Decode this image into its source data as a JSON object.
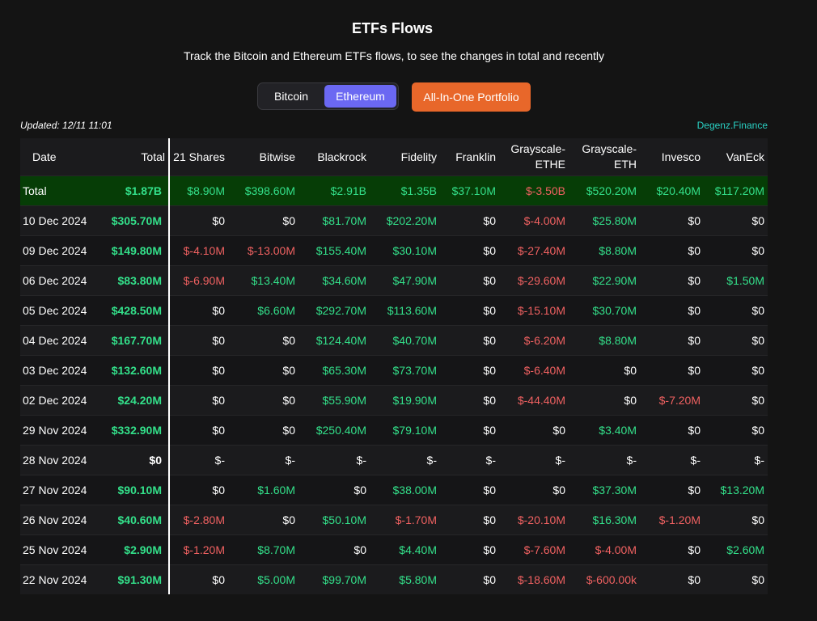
{
  "header": {
    "title": "ETFs Flows",
    "subtitle": "Track the Bitcoin and Ethereum ETFs flows, to see the changes in total and recently"
  },
  "toggle": {
    "options": [
      "Bitcoin",
      "Ethereum"
    ],
    "selected": "Ethereum",
    "portfolio_label": "All-In-One Portfolio"
  },
  "meta": {
    "updated": "Updated: 12/11 11:01",
    "brand": "Degenz.Finance"
  },
  "colors": {
    "accent": "#6b68f2",
    "portfolio_button": "#e8672a",
    "positive": "#33e08a",
    "negative": "#f06161",
    "total_row": "#063d06",
    "brand": "#2ad1c4"
  },
  "table": {
    "columns": [
      "Date",
      "Total",
      "21 Shares",
      "Bitwise",
      "Blackrock",
      "Fidelity",
      "Franklin",
      "Grayscale-ETHE",
      "Grayscale-ETH",
      "Invesco",
      "VanEck"
    ],
    "total_row": [
      "Total",
      "$1.87B",
      "$8.90M",
      "$398.60M",
      "$2.91B",
      "$1.35B",
      "$37.10M",
      "$-3.50B",
      "$520.20M",
      "$20.40M",
      "$117.20M"
    ],
    "rows": [
      [
        "10 Dec 2024",
        "$305.70M",
        "$0",
        "$0",
        "$81.70M",
        "$202.20M",
        "$0",
        "$-4.00M",
        "$25.80M",
        "$0",
        "$0"
      ],
      [
        "09 Dec 2024",
        "$149.80M",
        "$-4.10M",
        "$-13.00M",
        "$155.40M",
        "$30.10M",
        "$0",
        "$-27.40M",
        "$8.80M",
        "$0",
        "$0"
      ],
      [
        "06 Dec 2024",
        "$83.80M",
        "$-6.90M",
        "$13.40M",
        "$34.60M",
        "$47.90M",
        "$0",
        "$-29.60M",
        "$22.90M",
        "$0",
        "$1.50M"
      ],
      [
        "05 Dec 2024",
        "$428.50M",
        "$0",
        "$6.60M",
        "$292.70M",
        "$113.60M",
        "$0",
        "$-15.10M",
        "$30.70M",
        "$0",
        "$0"
      ],
      [
        "04 Dec 2024",
        "$167.70M",
        "$0",
        "$0",
        "$124.40M",
        "$40.70M",
        "$0",
        "$-6.20M",
        "$8.80M",
        "$0",
        "$0"
      ],
      [
        "03 Dec 2024",
        "$132.60M",
        "$0",
        "$0",
        "$65.30M",
        "$73.70M",
        "$0",
        "$-6.40M",
        "$0",
        "$0",
        "$0"
      ],
      [
        "02 Dec 2024",
        "$24.20M",
        "$0",
        "$0",
        "$55.90M",
        "$19.90M",
        "$0",
        "$-44.40M",
        "$0",
        "$-7.20M",
        "$0"
      ],
      [
        "29 Nov 2024",
        "$332.90M",
        "$0",
        "$0",
        "$250.40M",
        "$79.10M",
        "$0",
        "$0",
        "$3.40M",
        "$0",
        "$0"
      ],
      [
        "28 Nov 2024",
        "$0",
        "$-",
        "$-",
        "$-",
        "$-",
        "$-",
        "$-",
        "$-",
        "$-",
        "$-"
      ],
      [
        "27 Nov 2024",
        "$90.10M",
        "$0",
        "$1.60M",
        "$0",
        "$38.00M",
        "$0",
        "$0",
        "$37.30M",
        "$0",
        "$13.20M"
      ],
      [
        "26 Nov 2024",
        "$40.60M",
        "$-2.80M",
        "$0",
        "$50.10M",
        "$-1.70M",
        "$0",
        "$-20.10M",
        "$16.30M",
        "$-1.20M",
        "$0"
      ],
      [
        "25 Nov 2024",
        "$2.90M",
        "$-1.20M",
        "$8.70M",
        "$0",
        "$4.40M",
        "$0",
        "$-7.60M",
        "$-4.00M",
        "$0",
        "$2.60M"
      ],
      [
        "22 Nov 2024",
        "$91.30M",
        "$0",
        "$5.00M",
        "$99.70M",
        "$5.80M",
        "$0",
        "$-18.60M",
        "$-600.00k",
        "$0",
        "$0"
      ]
    ]
  }
}
